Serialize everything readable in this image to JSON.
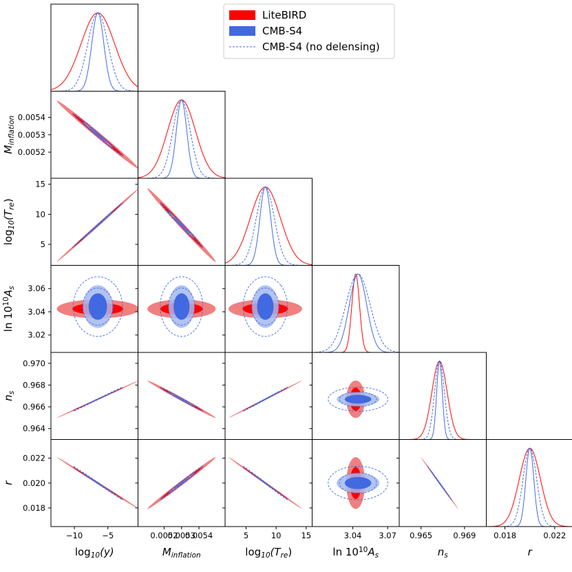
{
  "chart_data": {
    "type": "corner-triangle",
    "params": [
      {
        "key": "log10y",
        "label": "log₁₀(y)",
        "mean": -6.5,
        "range": [
          -13.5,
          -0.5
        ],
        "ticks": [
          -10,
          -5
        ],
        "tick_labels": [
          "−10",
          "−5"
        ],
        "ls_sd": 2.5,
        "s4_sd": 0.9,
        "nd_sd": 1.5
      },
      {
        "key": "Minf",
        "label": "M_inflation",
        "mean": 0.0053,
        "range": [
          0.00505,
          0.00555
        ],
        "ticks": [
          0.0052,
          0.0053,
          0.0054
        ],
        "tick_labels": [
          "0.0052",
          "0.0053",
          "0.0054"
        ],
        "ls_sd": 8e-05,
        "s4_sd": 3e-05,
        "nd_sd": 5e-05
      },
      {
        "key": "log10Tre",
        "label": "log₁₀(T_re)",
        "mean": 8.2,
        "range": [
          1.5,
          16.0
        ],
        "ticks": [
          5,
          10,
          15
        ],
        "tick_labels": [
          "5",
          "10",
          "15"
        ],
        "ls_sd": 2.5,
        "s4_sd": 0.9,
        "nd_sd": 1.5
      },
      {
        "key": "lnAs",
        "label": "ln 10¹⁰A_s",
        "mean": 3.0425,
        "range": [
          3.005,
          3.08
        ],
        "ticks": [
          3.02,
          3.04,
          3.06
        ],
        "tick_labels": [
          "3.02",
          "3.04",
          "3.06"
        ],
        "xticks": [
          3.04,
          3.07
        ],
        "xtick_labels": [
          "3.04",
          "3.07"
        ],
        "ls_sd": 0.0033,
        "s4_sd": 0.0075,
        "nd_sd": 0.0105,
        "s4_mean": 3.0445
      },
      {
        "key": "ns",
        "label": "n_s",
        "mean": 0.9667,
        "range": [
          0.963,
          0.971
        ],
        "ticks": [
          0.964,
          0.966,
          0.968,
          0.97
        ],
        "tick_labels": [
          "0.964",
          "0.966",
          "0.968",
          "0.970"
        ],
        "xticks": [
          0.965,
          0.969
        ],
        "xtick_labels": [
          "0.965",
          "0.969"
        ],
        "ls_sd": 0.0007,
        "s4_sd": 0.00026,
        "nd_sd": 0.00045
      },
      {
        "key": "r",
        "label": "r",
        "mean": 0.02,
        "range": [
          0.0165,
          0.0235
        ],
        "ticks": [
          0.018,
          0.02,
          0.022
        ],
        "tick_labels": [
          "0.018",
          "0.020",
          "0.022"
        ],
        "xticks": [
          0.018,
          0.022
        ],
        "xtick_labels": [
          "0.018",
          "0.022"
        ],
        "ls_sd": 0.00085,
        "s4_sd": 0.00032,
        "nd_sd": 0.00055
      }
    ],
    "correlations": {
      "1-0": -0.995,
      "2-0": 0.999,
      "2-1": -0.995,
      "3-0": 0.0,
      "3-1": 0.0,
      "3-2": 0.0,
      "4-0": 0.999,
      "4-1": -0.995,
      "4-2": 0.999,
      "4-3": 0.0,
      "5-0": -0.999,
      "5-1": 0.995,
      "5-2": -0.999,
      "5-3": 0.0,
      "5-4": -0.999
    },
    "legend": [
      {
        "label": "LiteBIRD",
        "color": "#ff0000",
        "style": "filled"
      },
      {
        "label": "CMB-S4",
        "color": "#4169e1",
        "style": "filled"
      },
      {
        "label": "CMB-S4 (no delensing)",
        "color": "#4169e1",
        "style": "dashed"
      }
    ],
    "colors": {
      "litebird_outer": "#f08080",
      "litebird_inner": "#ff0000",
      "cmbs4_outer": "#a4b8ee",
      "cmbs4_inner": "#4169e1",
      "dashed": "#4169e1"
    }
  }
}
